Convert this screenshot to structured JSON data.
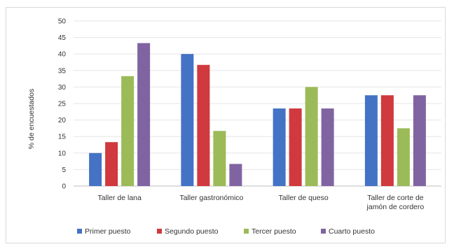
{
  "chart_data": {
    "type": "bar",
    "ylabel": "% de encuestados",
    "ylim": [
      0,
      50
    ],
    "yticks": [
      0,
      5,
      10,
      15,
      20,
      25,
      30,
      35,
      40,
      45,
      50
    ],
    "grid": true,
    "legend_position": "bottom",
    "categories": [
      [
        "Taller de lana"
      ],
      [
        "Taller gastronómico"
      ],
      [
        "Taller de queso"
      ],
      [
        "Taller de corte de",
        "jamón de cordero"
      ]
    ],
    "series": [
      {
        "name": "Primer puesto",
        "color": "#4472C4",
        "values": [
          10,
          40,
          23.5,
          27.5
        ]
      },
      {
        "name": "Segundo puesto",
        "color": "#D0393E",
        "values": [
          13.3,
          36.7,
          23.5,
          27.5
        ]
      },
      {
        "name": "Tercer puesto",
        "color": "#9BBB59",
        "values": [
          33.3,
          16.7,
          30,
          17.5
        ]
      },
      {
        "name": "Cuarto puesto",
        "color": "#8064A2",
        "values": [
          43.3,
          6.7,
          23.5,
          27.5
        ]
      }
    ]
  }
}
